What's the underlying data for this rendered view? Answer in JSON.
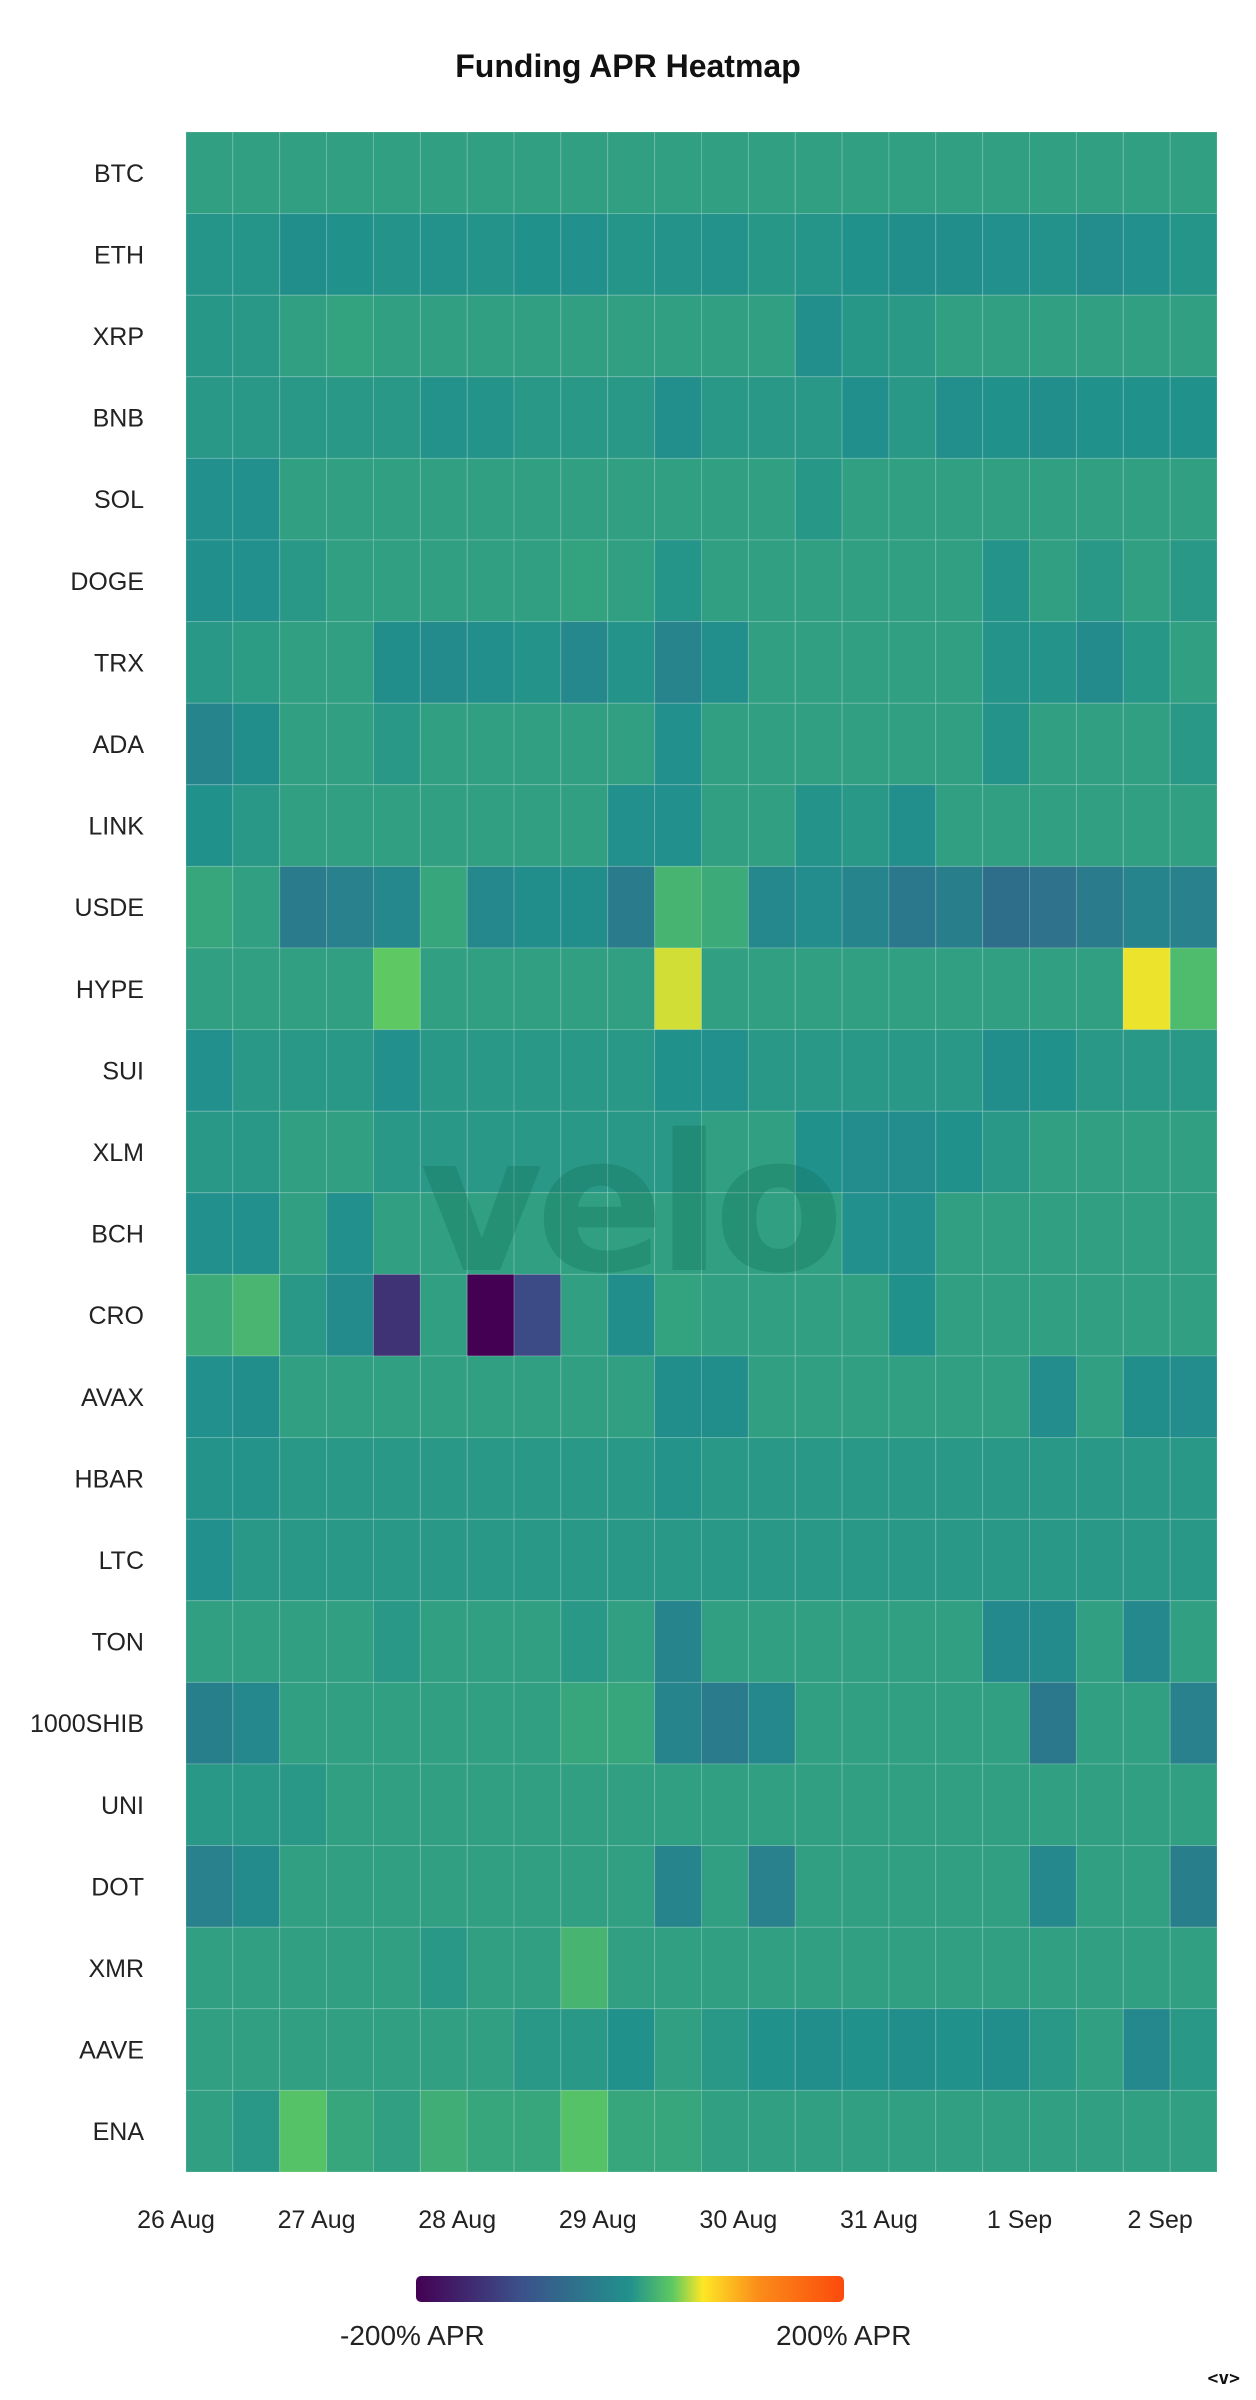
{
  "chart_data": {
    "type": "heatmap",
    "title": "Funding APR Heatmap",
    "rows": [
      "BTC",
      "ETH",
      "XRP",
      "BNB",
      "SOL",
      "DOGE",
      "TRX",
      "ADA",
      "LINK",
      "USDE",
      "HYPE",
      "SUI",
      "XLM",
      "BCH",
      "CRO",
      "AVAX",
      "HBAR",
      "LTC",
      "TON",
      "1000SHIB",
      "UNI",
      "DOT",
      "XMR",
      "AAVE",
      "ENA"
    ],
    "x_ticks": [
      "26 Aug",
      "27 Aug",
      "28 Aug",
      "29 Aug",
      "30 Aug",
      "31 Aug",
      "1 Sep",
      "2 Sep"
    ],
    "columns_per_day": 3,
    "color_scale": {
      "min": -200,
      "max": 200,
      "unit": "% APR",
      "min_label": "-200% APR",
      "max_label": "200% APR",
      "stops": [
        "#440154",
        "#3b528b",
        "#21918c",
        "#5ec962",
        "#fde725",
        "#fb8c1a",
        "#fb4a0c"
      ]
    },
    "values": [
      [
        10,
        10,
        10,
        10,
        10,
        10,
        10,
        10,
        10,
        10,
        10,
        10,
        10,
        10,
        10,
        10,
        10,
        10,
        10,
        10,
        10,
        10
      ],
      [
        3,
        3,
        -5,
        0,
        2,
        1,
        2,
        0,
        -2,
        3,
        2,
        1,
        4,
        3,
        0,
        -4,
        -4,
        -2,
        1,
        -8,
        -2,
        3
      ],
      [
        4,
        5,
        10,
        12,
        10,
        10,
        10,
        10,
        10,
        10,
        10,
        10,
        10,
        -3,
        4,
        6,
        10,
        10,
        10,
        10,
        10,
        10
      ],
      [
        5,
        5,
        5,
        5,
        5,
        1,
        2,
        5,
        5,
        5,
        -3,
        5,
        5,
        5,
        -1,
        5,
        -3,
        0,
        -5,
        0,
        0,
        0
      ],
      [
        -2,
        -2,
        10,
        10,
        10,
        10,
        10,
        10,
        10,
        10,
        10,
        10,
        10,
        4,
        10,
        10,
        10,
        10,
        10,
        10,
        10,
        10
      ],
      [
        -1,
        -2,
        5,
        10,
        10,
        10,
        10,
        10,
        12,
        10,
        3,
        10,
        10,
        10,
        10,
        10,
        10,
        2,
        10,
        5,
        10,
        5
      ],
      [
        5,
        8,
        10,
        10,
        -5,
        -10,
        -3,
        2,
        -15,
        2,
        -22,
        -3,
        10,
        10,
        10,
        10,
        10,
        2,
        2,
        -10,
        4,
        10
      ],
      [
        -20,
        -5,
        10,
        10,
        5,
        10,
        10,
        10,
        10,
        10,
        -2,
        10,
        10,
        10,
        10,
        10,
        10,
        2,
        10,
        10,
        10,
        5
      ],
      [
        0,
        5,
        10,
        10,
        10,
        10,
        10,
        10,
        10,
        -2,
        -2,
        10,
        10,
        2,
        5,
        -3,
        10,
        10,
        10,
        10,
        10,
        10
      ],
      [
        15,
        10,
        -35,
        -25,
        -15,
        15,
        -15,
        -5,
        -5,
        -35,
        25,
        18,
        -15,
        -8,
        -20,
        -40,
        -30,
        -55,
        -50,
        -35,
        -20,
        -25
      ],
      [
        10,
        10,
        10,
        10,
        40,
        10,
        10,
        10,
        10,
        10,
        60,
        10,
        10,
        10,
        10,
        10,
        10,
        10,
        10,
        10,
        65,
        30
      ],
      [
        -2,
        5,
        5,
        5,
        -2,
        5,
        5,
        5,
        5,
        5,
        0,
        -2,
        5,
        5,
        5,
        5,
        5,
        -5,
        0,
        5,
        5,
        5
      ],
      [
        5,
        5,
        10,
        10,
        5,
        5,
        5,
        5,
        5,
        5,
        5,
        10,
        10,
        0,
        -8,
        -8,
        0,
        5,
        10,
        10,
        10,
        10
      ],
      [
        -2,
        -2,
        10,
        -2,
        10,
        10,
        10,
        10,
        10,
        10,
        10,
        10,
        10,
        10,
        -2,
        -2,
        10,
        10,
        10,
        10,
        10,
        10
      ],
      [
        18,
        26,
        5,
        -10,
        -140,
        10,
        -200,
        -110,
        10,
        -5,
        12,
        10,
        10,
        10,
        10,
        0,
        10,
        10,
        10,
        10,
        10,
        10
      ],
      [
        -2,
        -5,
        10,
        10,
        10,
        10,
        10,
        10,
        10,
        10,
        -5,
        -5,
        10,
        10,
        10,
        10,
        10,
        10,
        -8,
        10,
        -5,
        -8
      ],
      [
        2,
        2,
        5,
        5,
        5,
        5,
        5,
        5,
        5,
        5,
        2,
        5,
        5,
        5,
        5,
        5,
        5,
        5,
        5,
        5,
        5,
        5
      ],
      [
        -2,
        5,
        5,
        5,
        5,
        5,
        5,
        5,
        5,
        5,
        5,
        5,
        5,
        5,
        5,
        5,
        5,
        5,
        5,
        5,
        5,
        5
      ],
      [
        10,
        10,
        10,
        10,
        5,
        10,
        10,
        10,
        5,
        10,
        -20,
        10,
        10,
        10,
        10,
        10,
        10,
        -12,
        -10,
        10,
        -15,
        10
      ],
      [
        -28,
        -15,
        10,
        10,
        10,
        10,
        10,
        10,
        15,
        15,
        -20,
        -35,
        -15,
        10,
        10,
        10,
        10,
        10,
        -40,
        10,
        10,
        -25
      ],
      [
        5,
        5,
        5,
        10,
        10,
        10,
        10,
        10,
        10,
        10,
        10,
        10,
        10,
        10,
        10,
        10,
        10,
        10,
        10,
        10,
        10,
        10
      ],
      [
        -25,
        -10,
        10,
        10,
        10,
        10,
        10,
        10,
        10,
        10,
        -20,
        10,
        -25,
        10,
        10,
        10,
        10,
        10,
        -15,
        10,
        10,
        -30
      ],
      [
        10,
        10,
        10,
        10,
        10,
        5,
        10,
        10,
        25,
        10,
        10,
        10,
        10,
        10,
        10,
        10,
        10,
        10,
        10,
        10,
        10,
        10
      ],
      [
        10,
        10,
        10,
        10,
        10,
        10,
        10,
        5,
        5,
        0,
        10,
        5,
        0,
        -5,
        0,
        -5,
        0,
        -5,
        5,
        10,
        -15,
        5
      ],
      [
        10,
        5,
        35,
        15,
        10,
        20,
        15,
        15,
        35,
        15,
        15,
        10,
        10,
        10,
        10,
        10,
        10,
        10,
        10,
        10,
        10,
        10
      ]
    ]
  },
  "watermark": "velo",
  "corner_mark": "<v>"
}
